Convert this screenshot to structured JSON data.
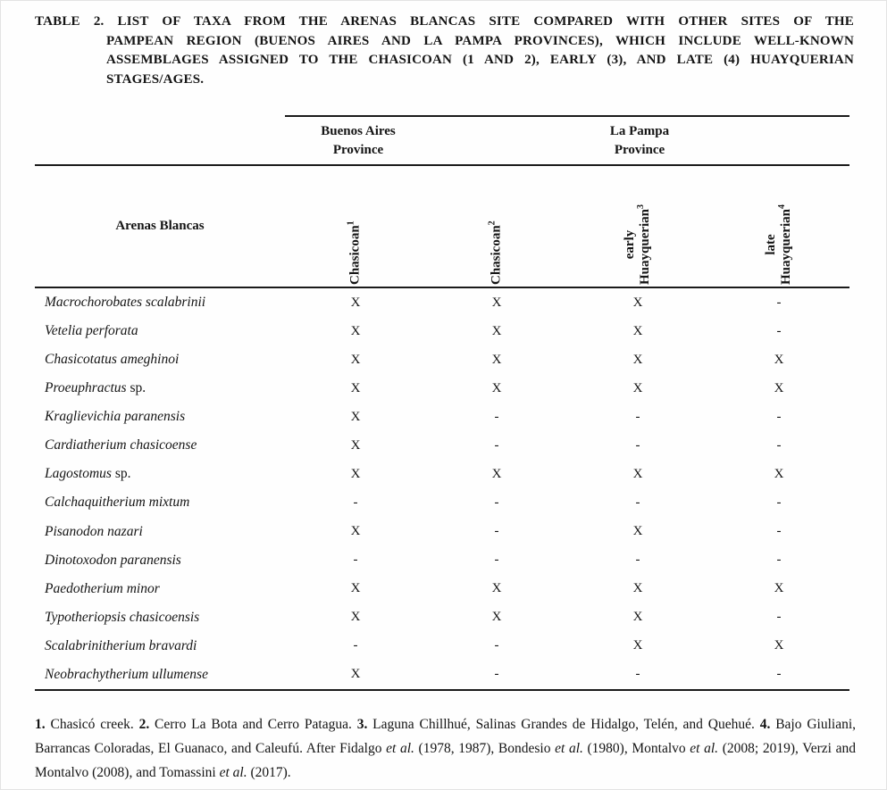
{
  "title": {
    "lines": [
      "TABLE 2. LIST OF TAXA FROM THE ARENAS BLANCAS SITE COMPARED WITH OTHER SITES OF THE",
      "PAMPEAN REGION (BUENOS AIRES AND LA PAMPA PROVINCES), WHICH INCLUDE WELL-KNOWN",
      "ASSEMBLAGES ASSIGNED TO THE CHASICOAN (1 AND 2), EARLY (3), AND LATE (4) HUAYQUERIAN",
      "STAGES/AGES."
    ]
  },
  "table": {
    "row_header": "Arenas Blancas",
    "province_groups": [
      {
        "line1": "Buenos Aires",
        "line2": "Province"
      },
      {
        "line1": "La Pampa",
        "line2": "Province"
      }
    ],
    "columns": [
      {
        "line1": "Chasicoan",
        "line2": "",
        "sup": "1"
      },
      {
        "line1": "Chasicoan",
        "line2": "",
        "sup": "2"
      },
      {
        "line1": "early",
        "line2": "Huayquerian",
        "sup": "3"
      },
      {
        "line1": "late",
        "line2": "Huayquerian",
        "sup": "4"
      }
    ],
    "rows": [
      {
        "taxon": "Macrochorobates scalabrinii",
        "suffix": "",
        "marks": [
          "X",
          "X",
          "X",
          "-"
        ]
      },
      {
        "taxon": "Vetelia perforata",
        "suffix": "",
        "marks": [
          "X",
          "X",
          "X",
          "-"
        ]
      },
      {
        "taxon": "Chasicotatus ameghinoi",
        "suffix": "",
        "marks": [
          "X",
          "X",
          "X",
          "X"
        ]
      },
      {
        "taxon": "Proeuphractus",
        "suffix": " sp.",
        "marks": [
          "X",
          "X",
          "X",
          "X"
        ]
      },
      {
        "taxon": "Kraglievichia paranensis",
        "suffix": "",
        "marks": [
          "X",
          "-",
          "-",
          "-"
        ]
      },
      {
        "taxon": "Cardiatherium chasicoense",
        "suffix": "",
        "marks": [
          "X",
          "-",
          "-",
          "-"
        ]
      },
      {
        "taxon": "Lagostomus",
        "suffix": " sp.",
        "marks": [
          "X",
          "X",
          "X",
          "X"
        ]
      },
      {
        "taxon": "Calchaquitherium mixtum",
        "suffix": "",
        "marks": [
          "-",
          "-",
          "-",
          "-"
        ]
      },
      {
        "taxon": "Pisanodon nazari",
        "suffix": "",
        "marks": [
          "X",
          "-",
          "X",
          "-"
        ]
      },
      {
        "taxon": "Dinotoxodon paranensis",
        "suffix": "",
        "marks": [
          "-",
          "-",
          "-",
          "-"
        ]
      },
      {
        "taxon": "Paedotherium minor",
        "suffix": "",
        "marks": [
          "X",
          "X",
          "X",
          "X"
        ]
      },
      {
        "taxon": "Typotheriopsis chasicoensis",
        "suffix": "",
        "marks": [
          "X",
          "X",
          "X",
          "-"
        ]
      },
      {
        "taxon": "Scalabrinitherium bravardi",
        "suffix": "",
        "marks": [
          "-",
          "-",
          "X",
          "X"
        ]
      },
      {
        "taxon": "Neobrachytherium ullumense",
        "suffix": "",
        "marks": [
          "X",
          "-",
          "-",
          "-"
        ]
      }
    ]
  },
  "footnotes": {
    "segments": [
      "1.",
      " Chasicó creek. ",
      "2.",
      " Cerro La Bota and Cerro Patagua. ",
      "3.",
      " Laguna Chillhué, Salinas Grandes de Hidalgo, Telén, and Quehué. ",
      "4.",
      " Bajo Giuliani, Barrancas Coloradas, El Guanaco, and Caleufú. After Fidalgo ",
      "et al.",
      " (1978, 1987), Bondesio ",
      "et al.",
      " (1980), Montalvo ",
      "et al.",
      " (2008; 2019), Verzi and Montalvo (2008), and Tomassini ",
      "et al.",
      " (2017)."
    ]
  },
  "colors": {
    "text": "#141414",
    "rule": "#1a1a1a",
    "background": "#fefefe"
  }
}
